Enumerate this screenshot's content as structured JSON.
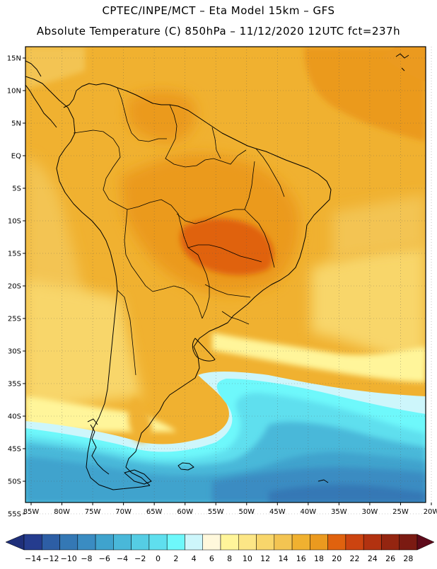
{
  "header": {
    "line1": "CPTEC/INPE/MCT –  Eta Model 15km – GFS",
    "line2": "Absolute Temperature (C) 850hPa – 11/12/2020 12UTC fct=237h"
  },
  "map": {
    "lat_labels": [
      "15N",
      "10N",
      "5N",
      "EQ",
      "5S",
      "10S",
      "15S",
      "20S",
      "25S",
      "30S",
      "35S",
      "40S",
      "45S",
      "50S",
      "55S"
    ],
    "lon_labels": [
      "85W",
      "80W",
      "75W",
      "70W",
      "65W",
      "60W",
      "55W",
      "50W",
      "45W",
      "40W",
      "35W",
      "30W",
      "25W",
      "20W"
    ],
    "lat_range": [
      15,
      -55
    ],
    "lon_range": [
      -85,
      -20
    ]
  },
  "colorbar": {
    "tick_labels": [
      "-14",
      "-12",
      "-10",
      "-8",
      "-6",
      "-4",
      "-2",
      "0",
      "2",
      "4",
      "6",
      "8",
      "10",
      "12",
      "14",
      "16",
      "18",
      "20",
      "22",
      "24",
      "26",
      "28"
    ],
    "colors": [
      "#253c8e",
      "#2d5ea5",
      "#3478b5",
      "#3a8cc2",
      "#3fa3cd",
      "#49b8d9",
      "#55cde4",
      "#5fdfee",
      "#6ef8fb",
      "#cdf6fb",
      "#fff8dc",
      "#fff59a",
      "#fce686",
      "#f8d66b",
      "#f3c452",
      "#f0b130",
      "#eb9a1f",
      "#e0620e",
      "#cc4410",
      "#b23210",
      "#942510",
      "#7b1a12"
    ],
    "under_color": "#1f2f7a",
    "over_color": "#5e0a1a"
  }
}
